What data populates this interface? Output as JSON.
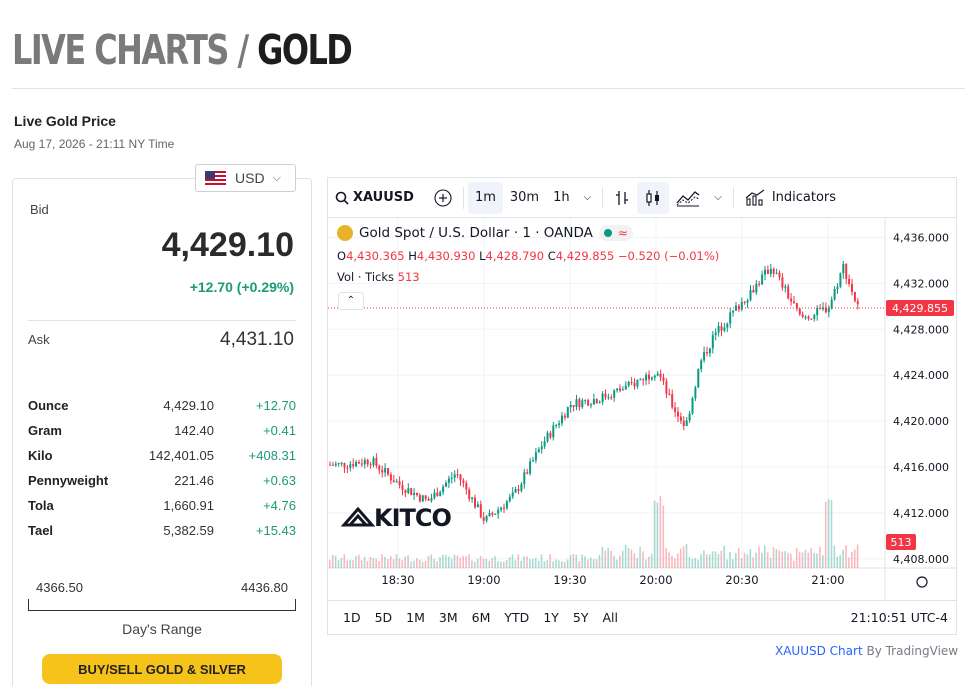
{
  "header": {
    "title_prefix": "LIVE CHARTS / ",
    "title_metal": "GOLD"
  },
  "price": {
    "section_title": "Live Gold Price",
    "timestamp": "Aug 17, 2026 - 21:11 NY Time",
    "currency": "USD",
    "bid_label": "Bid",
    "bid": "4,429.10",
    "change": "+12.70 (+0.29%)",
    "ask_label": "Ask",
    "ask": "4,431.10",
    "units": [
      {
        "name": "Ounce",
        "value": "4,429.10",
        "change": "+12.70"
      },
      {
        "name": "Gram",
        "value": "142.40",
        "change": "+0.41"
      },
      {
        "name": "Kilo",
        "value": "142,401.05",
        "change": "+408.31"
      },
      {
        "name": "Pennyweight",
        "value": "221.46",
        "change": "+0.63"
      },
      {
        "name": "Tola",
        "value": "1,660.91",
        "change": "+4.76"
      },
      {
        "name": "Tael",
        "value": "5,382.59",
        "change": "+15.43"
      }
    ],
    "range_low": "4366.50",
    "range_high": "4436.80",
    "range_label": "Day's Range",
    "buy_button": "BUY/SELL GOLD & SILVER"
  },
  "chart_widget": {
    "symbol": "XAUUSD",
    "intervals": [
      "1m",
      "30m",
      "1h"
    ],
    "active_interval": "1m",
    "indicators_label": "Indicators",
    "legend_title": "Gold Spot / U.S. Dollar · 1 · OANDA",
    "legend_approx": "≈",
    "ohlc": {
      "o_label": "O",
      "o": "4,430.365",
      "h_label": "H",
      "h": "4,430.930",
      "l_label": "L",
      "l": "4,428.790",
      "c_label": "C",
      "c": "4,429.855",
      "change": "−0.520 (−0.01%)"
    },
    "vol_label": "Vol · Ticks",
    "vol_value": "513",
    "watermark": "KITCO",
    "ranges": [
      "1D",
      "5D",
      "1M",
      "3M",
      "6M",
      "YTD",
      "1Y",
      "5Y",
      "All"
    ],
    "clock": "21:10:51 UTC-4",
    "colors": {
      "up": "#089981",
      "down": "#f23645",
      "accent": "#f6c31a"
    }
  },
  "chart_data": {
    "type": "candlestick",
    "x_ticks": [
      "18:30",
      "19:00",
      "19:30",
      "20:00",
      "20:30",
      "21:00"
    ],
    "y_ticks": [
      "4,436.000",
      "4,432.000",
      "4,428.000",
      "4,424.000",
      "4,420.000",
      "4,416.000",
      "4,412.000",
      "4,408.000"
    ],
    "ylim": [
      4407.2,
      4437.7
    ],
    "last_price": "4,429.855",
    "last_volume": "513",
    "grid": true,
    "series": [
      {
        "name": "XAUUSD",
        "x": [
          "18:10",
          "18:20",
          "18:30",
          "18:40",
          "18:50",
          "19:00",
          "19:10",
          "19:20",
          "19:30",
          "19:40",
          "19:50",
          "20:00",
          "20:05",
          "20:10",
          "20:15",
          "20:20",
          "20:30",
          "20:40",
          "20:50",
          "20:55",
          "21:00",
          "21:05",
          "21:10"
        ],
        "y": [
          4416.2,
          4416.6,
          4414.5,
          4413.0,
          4415.5,
          4411.3,
          4413.5,
          4418.0,
          4421.5,
          4422.0,
          4423.0,
          4424.5,
          4421.5,
          4419.5,
          4425.0,
          4427.5,
          4430.5,
          4433.5,
          4429.0,
          4429.3,
          4430.0,
          4433.5,
          4429.9
        ]
      }
    ]
  },
  "attribution": {
    "link": "XAUUSD Chart",
    "suffix": " By TradingView"
  }
}
